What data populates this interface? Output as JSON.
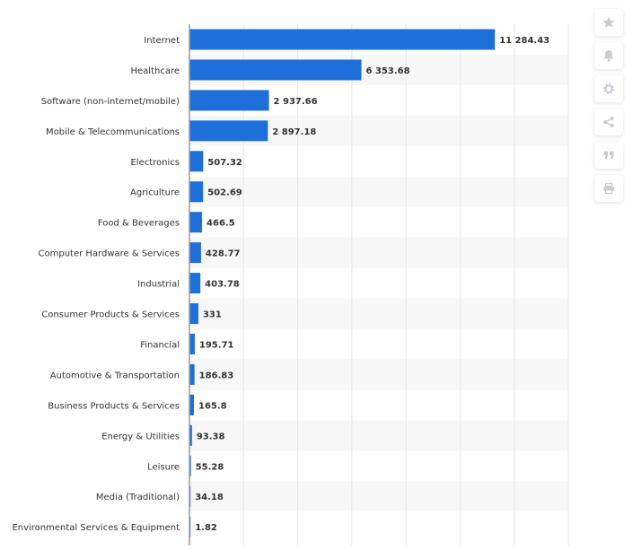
{
  "chart_data": {
    "type": "bar",
    "orientation": "horizontal",
    "categories": [
      "Internet",
      "Healthcare",
      "Software (non-internet/mobile)",
      "Mobile & Telecommunications",
      "Electronics",
      "Agriculture",
      "Food & Beverages",
      "Computer Hardware & Services",
      "Industrial",
      "Consumer Products & Services",
      "Financial",
      "Automotive & Transportation",
      "Business Products & Services",
      "Energy & Utilities",
      "Leisure",
      "Media (Traditional)",
      "Environmental Services & Equipment"
    ],
    "values": [
      11284.43,
      6353.68,
      2937.66,
      2897.18,
      507.32,
      502.69,
      466.5,
      428.77,
      403.78,
      331,
      195.71,
      186.83,
      165.8,
      93.38,
      55.28,
      34.18,
      1.82
    ],
    "value_labels": [
      "11 284.43",
      "6 353.68",
      "2 937.66",
      "2 897.18",
      "507.32",
      "502.69",
      "466.5",
      "428.77",
      "403.78",
      "331",
      "195.71",
      "186.83",
      "165.8",
      "93.38",
      "55.28",
      "34.18",
      "1.82"
    ],
    "xlim": [
      0,
      14000
    ],
    "grid": true,
    "bar_color": "#1f6fdb",
    "stripe_color": "#f7f7f7",
    "label_color": "#333333",
    "axis_color": "#999999"
  },
  "toolbar": {
    "buttons": [
      {
        "name": "star-icon",
        "label": "favorite"
      },
      {
        "name": "bell-icon",
        "label": "notifications"
      },
      {
        "name": "gear-icon",
        "label": "settings"
      },
      {
        "name": "share-icon",
        "label": "share"
      },
      {
        "name": "quote-icon",
        "label": "cite"
      },
      {
        "name": "print-icon",
        "label": "print"
      }
    ],
    "icon_color": "#c9ccd3"
  }
}
